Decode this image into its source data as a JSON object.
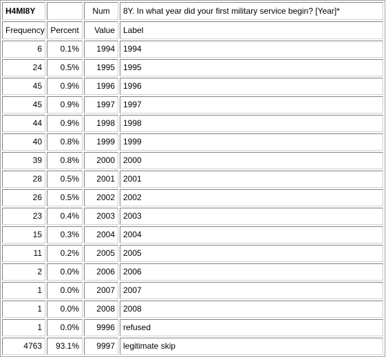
{
  "header": {
    "variable": "H4MI8Y",
    "blank": "",
    "type": "Num",
    "question": "8Y. In what year did your first military service begin? [Year]*"
  },
  "columns": {
    "frequency": "Frequency",
    "percent": "Percent",
    "value": "Value",
    "label": "Label"
  },
  "rows": [
    {
      "frequency": "6",
      "percent": "0.1%",
      "value": "1994",
      "label": "1994"
    },
    {
      "frequency": "24",
      "percent": "0.5%",
      "value": "1995",
      "label": "1995"
    },
    {
      "frequency": "45",
      "percent": "0.9%",
      "value": "1996",
      "label": "1996"
    },
    {
      "frequency": "45",
      "percent": "0.9%",
      "value": "1997",
      "label": "1997"
    },
    {
      "frequency": "44",
      "percent": "0.9%",
      "value": "1998",
      "label": "1998"
    },
    {
      "frequency": "40",
      "percent": "0.8%",
      "value": "1999",
      "label": "1999"
    },
    {
      "frequency": "39",
      "percent": "0.8%",
      "value": "2000",
      "label": "2000"
    },
    {
      "frequency": "28",
      "percent": "0.5%",
      "value": "2001",
      "label": "2001"
    },
    {
      "frequency": "26",
      "percent": "0.5%",
      "value": "2002",
      "label": "2002"
    },
    {
      "frequency": "23",
      "percent": "0.4%",
      "value": "2003",
      "label": "2003"
    },
    {
      "frequency": "15",
      "percent": "0.3%",
      "value": "2004",
      "label": "2004"
    },
    {
      "frequency": "11",
      "percent": "0.2%",
      "value": "2005",
      "label": "2005"
    },
    {
      "frequency": "2",
      "percent": "0.0%",
      "value": "2006",
      "label": "2006"
    },
    {
      "frequency": "1",
      "percent": "0.0%",
      "value": "2007",
      "label": "2007"
    },
    {
      "frequency": "1",
      "percent": "0.0%",
      "value": "2008",
      "label": "2008"
    },
    {
      "frequency": "1",
      "percent": "0.0%",
      "value": "9996",
      "label": "refused"
    },
    {
      "frequency": "4763",
      "percent": "93.1%",
      "value": "9997",
      "label": "legitimate skip"
    }
  ]
}
